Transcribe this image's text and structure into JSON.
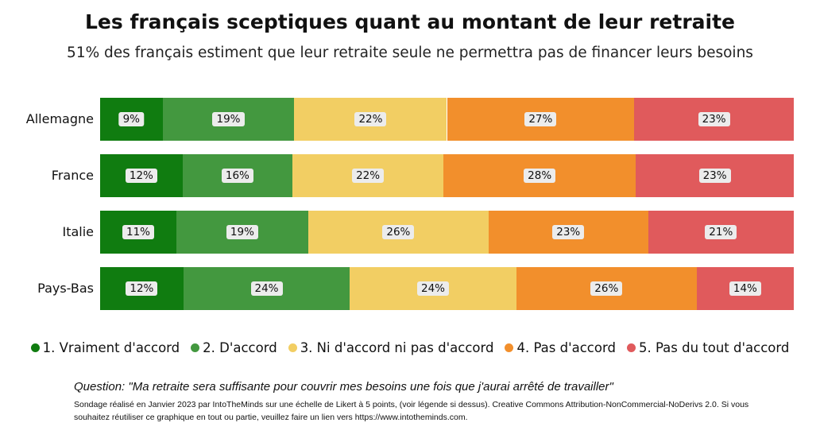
{
  "title": "Les français sceptiques quant au montant de leur retraite",
  "subtitle": "51% des français estiment que leur retraite seule ne permettra pas de financer leurs besoins",
  "footer": {
    "question": "Question: \"Ma retraite sera suffisante pour couvrir mes besoins une fois que j'aurai arrêté de travailler\"",
    "note": "Sondage réalisé en Janvier 2023 par IntoTheMinds sur une échelle de Likert à 5 points, (voir légende si dessus). Creative Commons Attribution-NonCommercial-NoDerivs 2.0. Si vous souhaitez réutiliser ce graphique en tout ou partie, veuillez faire un lien vers https://www.intotheminds.com."
  },
  "chart_data": {
    "type": "bar",
    "stacked": "100%",
    "orientation": "horizontal",
    "categories": [
      "Allemagne",
      "France",
      "Italie",
      "Pays-Bas"
    ],
    "series": [
      {
        "name": "1. Vraiment d'accord",
        "color": "#107C10",
        "values": [
          9,
          12,
          11,
          12
        ]
      },
      {
        "name": "2. D'accord",
        "color": "#43983F",
        "values": [
          19,
          16,
          19,
          24
        ]
      },
      {
        "name": "3. Ni d'accord ni pas d'accord",
        "color": "#F2CE63",
        "values": [
          22,
          22,
          26,
          24
        ]
      },
      {
        "name": "4. Pas d'accord",
        "color": "#F28F2C",
        "values": [
          27,
          28,
          23,
          26
        ]
      },
      {
        "name": "5. Pas du tout d'accord",
        "color": "#E05A5C",
        "values": [
          23,
          23,
          21,
          14
        ]
      }
    ],
    "value_format": "percent",
    "legend": "bottom",
    "grid": false
  }
}
